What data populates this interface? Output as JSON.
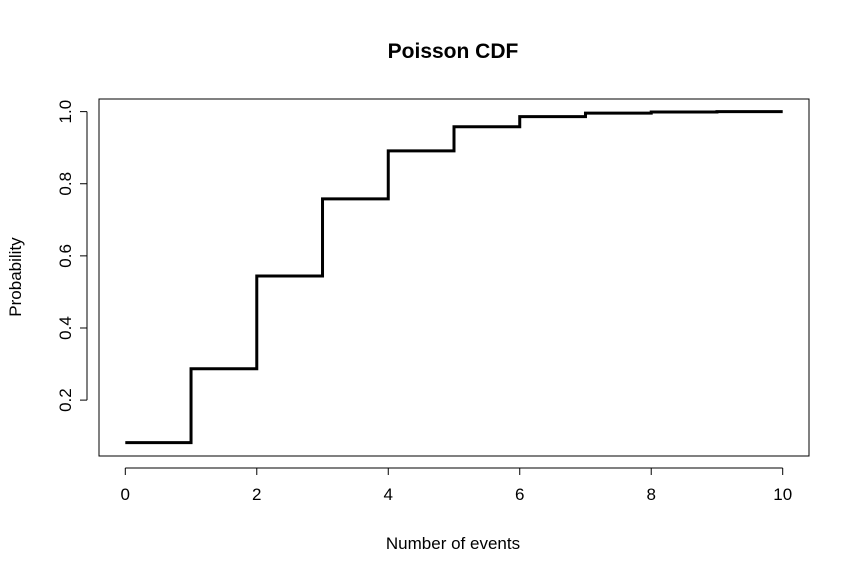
{
  "chart_data": {
    "type": "line",
    "title": "Poisson CDF",
    "xlabel": "Number of events",
    "ylabel": "Probability",
    "x": [
      0,
      1,
      2,
      3,
      4,
      5,
      6,
      7,
      8,
      9,
      10
    ],
    "y": [
      0.082,
      0.287,
      0.544,
      0.758,
      0.891,
      0.958,
      0.986,
      0.996,
      0.999,
      1.0,
      1.0
    ],
    "step": "post",
    "xlim": [
      -0.4,
      10.4
    ],
    "ylim": [
      0.045,
      1.035
    ],
    "xticks": [
      "0",
      "2",
      "4",
      "6",
      "8",
      "10"
    ],
    "yticks": [
      "0.2",
      "0.4",
      "0.6",
      "0.8",
      "1.0"
    ],
    "line_color": "#000000",
    "grid": false,
    "legend": "none"
  }
}
